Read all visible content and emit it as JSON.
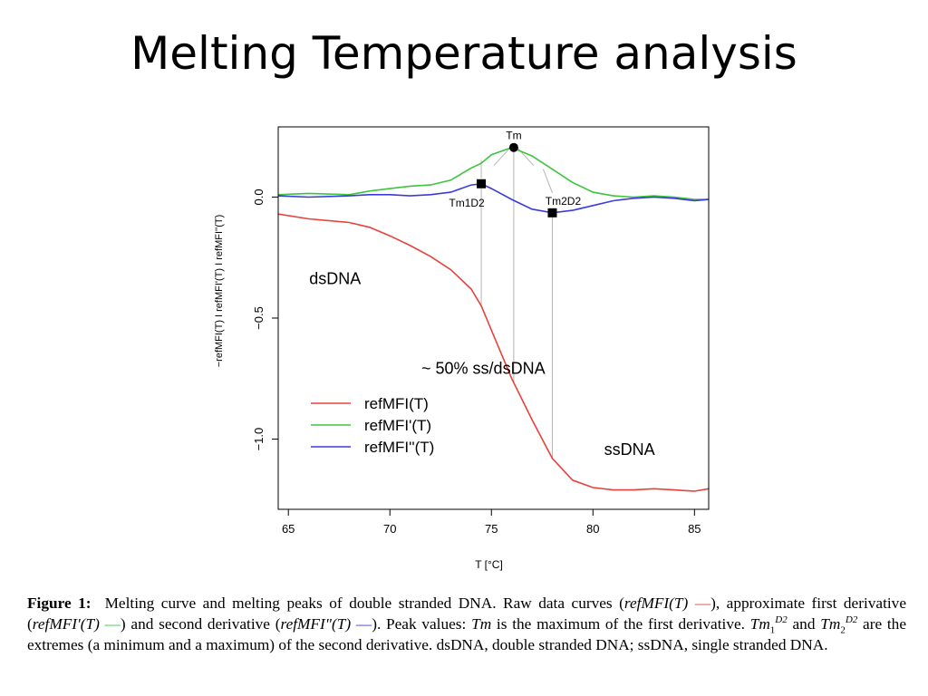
{
  "slide": {
    "title": "Melting Temperature analysis"
  },
  "colors": {
    "red": "#e8413b",
    "green": "#3ec43e",
    "blue": "#3b3bdd",
    "guide": "#b4b4b4"
  },
  "chart_data": {
    "type": "line",
    "xlabel": "T [°C]",
    "ylabel": "−refMFI(T) I refMFI'(T) I refMFI''(T)",
    "xlim": [
      64.5,
      85.7
    ],
    "ylim": [
      -1.29,
      0.29
    ],
    "xticks": [
      65,
      70,
      75,
      80,
      85
    ],
    "yticks": [
      0,
      -0.5,
      -1
    ],
    "ytick_labels": [
      "0.0",
      "−0.5",
      "−1.0"
    ],
    "series": [
      {
        "name": "refMFI(T)",
        "color": "#e8413b",
        "x": [
          64.5,
          66,
          68,
          69,
          70,
          71,
          72,
          73,
          74,
          74.5,
          75,
          76,
          77,
          78,
          79,
          80,
          81,
          82,
          83,
          84,
          85,
          85.7
        ],
        "y": [
          -0.07,
          -0.09,
          -0.105,
          -0.125,
          -0.16,
          -0.2,
          -0.245,
          -0.3,
          -0.38,
          -0.45,
          -0.55,
          -0.75,
          -0.92,
          -1.08,
          -1.17,
          -1.2,
          -1.21,
          -1.21,
          -1.205,
          -1.21,
          -1.215,
          -1.205
        ]
      },
      {
        "name": "refMFI'(T)",
        "color": "#3ec43e",
        "x": [
          64.5,
          66,
          68,
          69,
          70,
          71,
          72,
          73,
          74,
          74.5,
          75,
          76,
          77,
          78,
          79,
          80,
          81,
          82,
          83,
          84,
          85,
          85.7
        ],
        "y": [
          0.01,
          0.015,
          0.01,
          0.025,
          0.035,
          0.045,
          0.05,
          0.07,
          0.12,
          0.14,
          0.175,
          0.205,
          0.17,
          0.115,
          0.06,
          0.02,
          0.005,
          0.0,
          0.005,
          0.0,
          -0.01,
          -0.01
        ]
      },
      {
        "name": "refMFI''(T)",
        "color": "#3b3bdd",
        "x": [
          64.5,
          66,
          68,
          69,
          70,
          71,
          72,
          73,
          74,
          74.5,
          75,
          76,
          77,
          78,
          79,
          80,
          81,
          82,
          83,
          84,
          85,
          85.7
        ],
        "y": [
          0.005,
          0.0,
          0.005,
          0.01,
          0.01,
          0.005,
          0.01,
          0.02,
          0.05,
          0.055,
          0.035,
          -0.01,
          -0.05,
          -0.065,
          -0.055,
          -0.035,
          -0.015,
          -0.005,
          0.0,
          -0.005,
          -0.015,
          -0.01
        ]
      }
    ],
    "markers": [
      {
        "label": "Tm",
        "x": 76.1,
        "y": 0.205,
        "shape": "circle"
      },
      {
        "label": "Tm1D2",
        "x": 74.5,
        "y": 0.055,
        "shape": "square"
      },
      {
        "label": "Tm2D2",
        "x": 78.0,
        "y": -0.065,
        "shape": "square"
      }
    ],
    "annotations": [
      {
        "text": "dsDNA",
        "x": 67.3,
        "y": -0.36
      },
      {
        "text": "~ 50% ss/dsDNA",
        "x": 74.6,
        "y": -0.73
      },
      {
        "text": "ssDNA",
        "x": 81.8,
        "y": -1.065
      }
    ],
    "legend": {
      "position": "bottom-left"
    }
  },
  "caption": {
    "label": "Figure 1:",
    "p1": "Melting curve and melting peaks of double stranded DNA. Raw data curves (",
    "m_ref": "refMFI",
    "m_ref1": "refMFI'",
    "m_ref2": "refMFI\"",
    "m_T": "(T)",
    "dash": "—",
    "p2": "), approximate first derivative (",
    "p3": ") and second derivative (",
    "p4": "). Peak values: ",
    "m_Tm": "Tm",
    "p5": " is the maximum of the first derivative. ",
    "m_Tm_base": "Tm",
    "sub1": "1",
    "sub2": "2",
    "sup": "D2",
    "p6": " and ",
    "p7": " are the extremes (a minimum and a maximum) of the second derivative. dsDNA, double stranded DNA; ssDNA, single stranded DNA."
  }
}
